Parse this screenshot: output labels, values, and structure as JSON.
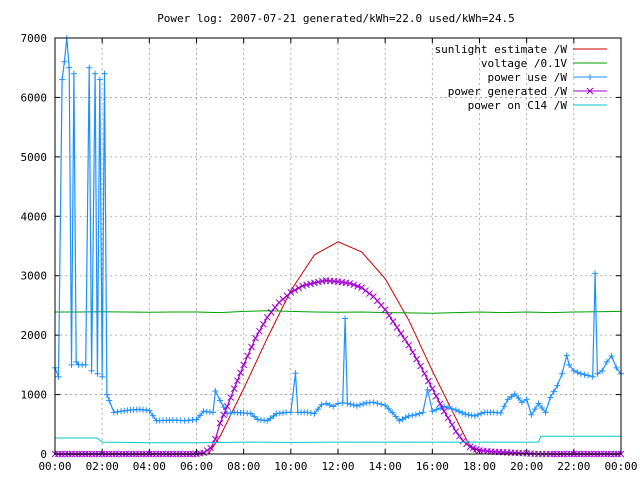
{
  "chart_data": {
    "type": "line",
    "title": "Power log: 2007-07-21 generated/kWh=22.0 used/kWh=24.5",
    "xlabel": "",
    "ylabel": "",
    "xlim": [
      0,
      24
    ],
    "ylim": [
      0,
      7000
    ],
    "x_ticks": [
      "00:00",
      "02:00",
      "04:00",
      "06:00",
      "08:00",
      "10:00",
      "12:00",
      "14:00",
      "16:00",
      "18:00",
      "20:00",
      "22:00",
      "00:00"
    ],
    "y_ticks": [
      "0",
      "1000",
      "2000",
      "3000",
      "4000",
      "5000",
      "6000",
      "7000"
    ],
    "grid": true,
    "legend_position": "top-right",
    "series": [
      {
        "name": "sunlight estimate /W",
        "color": "#cc0000",
        "marker": "none",
        "points": [
          [
            6.5,
            0
          ],
          [
            7,
            300
          ],
          [
            8,
            1100
          ],
          [
            9,
            1950
          ],
          [
            10,
            2750
          ],
          [
            11,
            3350
          ],
          [
            12,
            3570
          ],
          [
            13,
            3400
          ],
          [
            14,
            2950
          ],
          [
            15,
            2250
          ],
          [
            16,
            1400
          ],
          [
            17,
            600
          ],
          [
            17.5,
            200
          ],
          [
            17.9,
            0
          ]
        ]
      },
      {
        "name": "voltage /0.1V",
        "color": "#00a000",
        "marker": "none",
        "points": [
          [
            0,
            2390
          ],
          [
            1,
            2390
          ],
          [
            2,
            2395
          ],
          [
            3,
            2390
          ],
          [
            4,
            2385
          ],
          [
            5,
            2390
          ],
          [
            6,
            2390
          ],
          [
            7,
            2380
          ],
          [
            8,
            2400
          ],
          [
            9,
            2410
          ],
          [
            10,
            2400
          ],
          [
            11,
            2390
          ],
          [
            12,
            2385
          ],
          [
            13,
            2390
          ],
          [
            14,
            2380
          ],
          [
            15,
            2375
          ],
          [
            16,
            2370
          ],
          [
            17,
            2380
          ],
          [
            18,
            2390
          ],
          [
            19,
            2380
          ],
          [
            20,
            2390
          ],
          [
            21,
            2380
          ],
          [
            22,
            2390
          ],
          [
            23,
            2395
          ],
          [
            24,
            2400
          ]
        ]
      },
      {
        "name": "power use /W",
        "color": "#1e90ff",
        "marker": "plus",
        "points": [
          [
            0,
            1450
          ],
          [
            0.15,
            1300
          ],
          [
            0.3,
            6300
          ],
          [
            0.4,
            6600
          ],
          [
            0.5,
            7000
          ],
          [
            0.6,
            6500
          ],
          [
            0.7,
            1500
          ],
          [
            0.8,
            6400
          ],
          [
            0.9,
            1550
          ],
          [
            1.0,
            1500
          ],
          [
            1.3,
            1500
          ],
          [
            1.45,
            6500
          ],
          [
            1.55,
            1400
          ],
          [
            1.7,
            6400
          ],
          [
            1.8,
            1350
          ],
          [
            1.9,
            6300
          ],
          [
            2.0,
            1300
          ],
          [
            2.1,
            6400
          ],
          [
            2.2,
            1000
          ],
          [
            2.3,
            900
          ],
          [
            2.5,
            700
          ],
          [
            2.8,
            720
          ],
          [
            3.2,
            740
          ],
          [
            3.6,
            750
          ],
          [
            4.0,
            730
          ],
          [
            4.3,
            560
          ],
          [
            5.0,
            570
          ],
          [
            5.5,
            560
          ],
          [
            6.0,
            580
          ],
          [
            6.3,
            720
          ],
          [
            6.7,
            700
          ],
          [
            6.8,
            1060
          ],
          [
            7.0,
            900
          ],
          [
            7.3,
            680
          ],
          [
            7.6,
            700
          ],
          [
            8.0,
            690
          ],
          [
            8.3,
            680
          ],
          [
            8.6,
            580
          ],
          [
            9.0,
            560
          ],
          [
            9.4,
            680
          ],
          [
            9.8,
            700
          ],
          [
            10.0,
            700
          ],
          [
            10.2,
            1360
          ],
          [
            10.3,
            700
          ],
          [
            10.7,
            700
          ],
          [
            11.0,
            680
          ],
          [
            11.3,
            830
          ],
          [
            11.5,
            850
          ],
          [
            11.8,
            800
          ],
          [
            12.0,
            850
          ],
          [
            12.2,
            860
          ],
          [
            12.3,
            2280
          ],
          [
            12.4,
            850
          ],
          [
            12.8,
            810
          ],
          [
            13.2,
            860
          ],
          [
            13.5,
            870
          ],
          [
            14.0,
            820
          ],
          [
            14.3,
            700
          ],
          [
            14.6,
            560
          ],
          [
            15.0,
            640
          ],
          [
            15.3,
            660
          ],
          [
            15.6,
            700
          ],
          [
            15.8,
            1080
          ],
          [
            16.0,
            720
          ],
          [
            16.5,
            800
          ],
          [
            17.0,
            740
          ],
          [
            17.4,
            670
          ],
          [
            17.8,
            640
          ],
          [
            18.2,
            700
          ],
          [
            18.6,
            700
          ],
          [
            18.9,
            690
          ],
          [
            19.2,
            920
          ],
          [
            19.5,
            1010
          ],
          [
            19.8,
            870
          ],
          [
            20.0,
            920
          ],
          [
            20.2,
            660
          ],
          [
            20.5,
            850
          ],
          [
            20.8,
            700
          ],
          [
            21.0,
            950
          ],
          [
            21.3,
            1150
          ],
          [
            21.5,
            1350
          ],
          [
            21.7,
            1660
          ],
          [
            21.8,
            1500
          ],
          [
            22.0,
            1400
          ],
          [
            22.3,
            1350
          ],
          [
            22.6,
            1320
          ],
          [
            22.8,
            1300
          ],
          [
            22.9,
            3040
          ],
          [
            23.0,
            1350
          ],
          [
            23.2,
            1400
          ],
          [
            23.4,
            1550
          ],
          [
            23.6,
            1650
          ],
          [
            23.8,
            1450
          ],
          [
            24.0,
            1350
          ]
        ]
      },
      {
        "name": "power generated /W",
        "color": "#a000d0",
        "marker": "cross",
        "points": [
          [
            0,
            0
          ],
          [
            1,
            0
          ],
          [
            2,
            0
          ],
          [
            3,
            0
          ],
          [
            4,
            0
          ],
          [
            5,
            0
          ],
          [
            6,
            0
          ],
          [
            6.3,
            20
          ],
          [
            6.6,
            100
          ],
          [
            6.8,
            250
          ],
          [
            7.0,
            520
          ],
          [
            7.3,
            800
          ],
          [
            7.6,
            1100
          ],
          [
            8.0,
            1500
          ],
          [
            8.5,
            1950
          ],
          [
            9.0,
            2300
          ],
          [
            9.5,
            2550
          ],
          [
            10.0,
            2720
          ],
          [
            10.5,
            2830
          ],
          [
            11.0,
            2880
          ],
          [
            11.5,
            2920
          ],
          [
            12.0,
            2900
          ],
          [
            12.5,
            2870
          ],
          [
            13.0,
            2800
          ],
          [
            13.5,
            2650
          ],
          [
            14.0,
            2430
          ],
          [
            14.5,
            2130
          ],
          [
            15.0,
            1830
          ],
          [
            15.5,
            1480
          ],
          [
            16.0,
            1100
          ],
          [
            16.5,
            720
          ],
          [
            17.0,
            380
          ],
          [
            17.3,
            220
          ],
          [
            17.6,
            120
          ],
          [
            18.0,
            60
          ],
          [
            18.5,
            40
          ],
          [
            19.0,
            30
          ],
          [
            19.5,
            20
          ],
          [
            20.0,
            10
          ],
          [
            20.5,
            0
          ],
          [
            21,
            0
          ],
          [
            22,
            0
          ],
          [
            23,
            0
          ],
          [
            24,
            0
          ]
        ]
      },
      {
        "name": "power on C14 /W",
        "color": "#00c8c8",
        "marker": "none",
        "points": [
          [
            0,
            270
          ],
          [
            1.8,
            270
          ],
          [
            2.0,
            200
          ],
          [
            4,
            190
          ],
          [
            6,
            190
          ],
          [
            8,
            200
          ],
          [
            10,
            195
          ],
          [
            12,
            200
          ],
          [
            14,
            200
          ],
          [
            16,
            200
          ],
          [
            18,
            200
          ],
          [
            20,
            200
          ],
          [
            20.5,
            200
          ],
          [
            20.6,
            300
          ],
          [
            22,
            300
          ],
          [
            24,
            300
          ]
        ]
      }
    ]
  }
}
